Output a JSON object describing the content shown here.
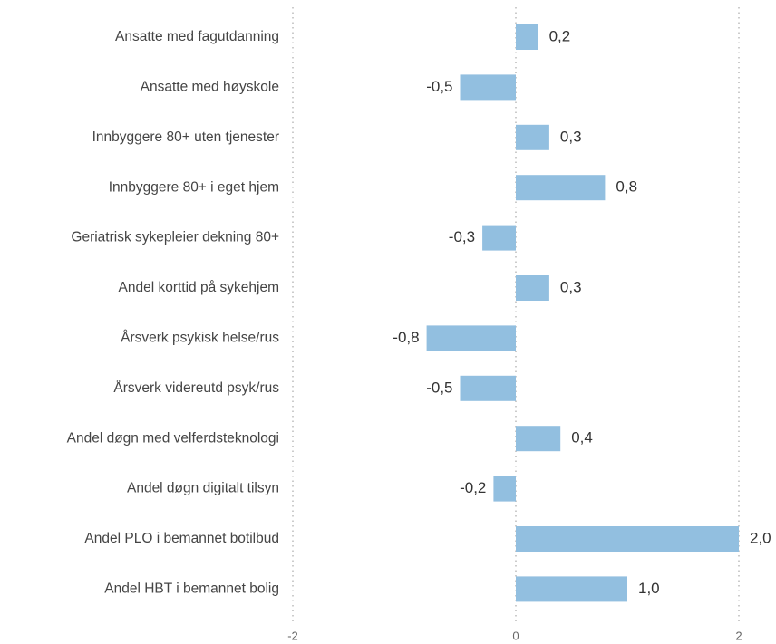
{
  "chart_data": {
    "type": "hbar",
    "categories": [
      "Ansatte med fagutdanning",
      "Ansatte med høyskole",
      "Innbyggere 80+ uten tjenester",
      "Innbyggere 80+ i eget hjem",
      "Geriatrisk sykepleier dekning 80+",
      "Andel korttid på sykehjem",
      "Årsverk psykisk helse/rus",
      "Årsverk videreutd psyk/rus",
      "Andel døgn med velferdsteknologi",
      "Andel døgn digitalt tilsyn",
      "Andel PLO i bemannet botilbud",
      "Andel HBT i bemannet bolig"
    ],
    "values": [
      0.2,
      -0.5,
      0.3,
      0.8,
      -0.3,
      0.3,
      -0.8,
      -0.5,
      0.4,
      -0.2,
      2.0,
      1.0
    ],
    "value_labels": [
      "0,2",
      "-0,5",
      "0,3",
      "0,8",
      "-0,3",
      "0,3",
      "-0,8",
      "-0,5",
      "0,4",
      "-0,2",
      "2,0",
      "1,0"
    ],
    "color": "#92bfe0",
    "xlim": [
      -2,
      2
    ],
    "xticks": [
      -2,
      0,
      2
    ],
    "grid": true
  }
}
